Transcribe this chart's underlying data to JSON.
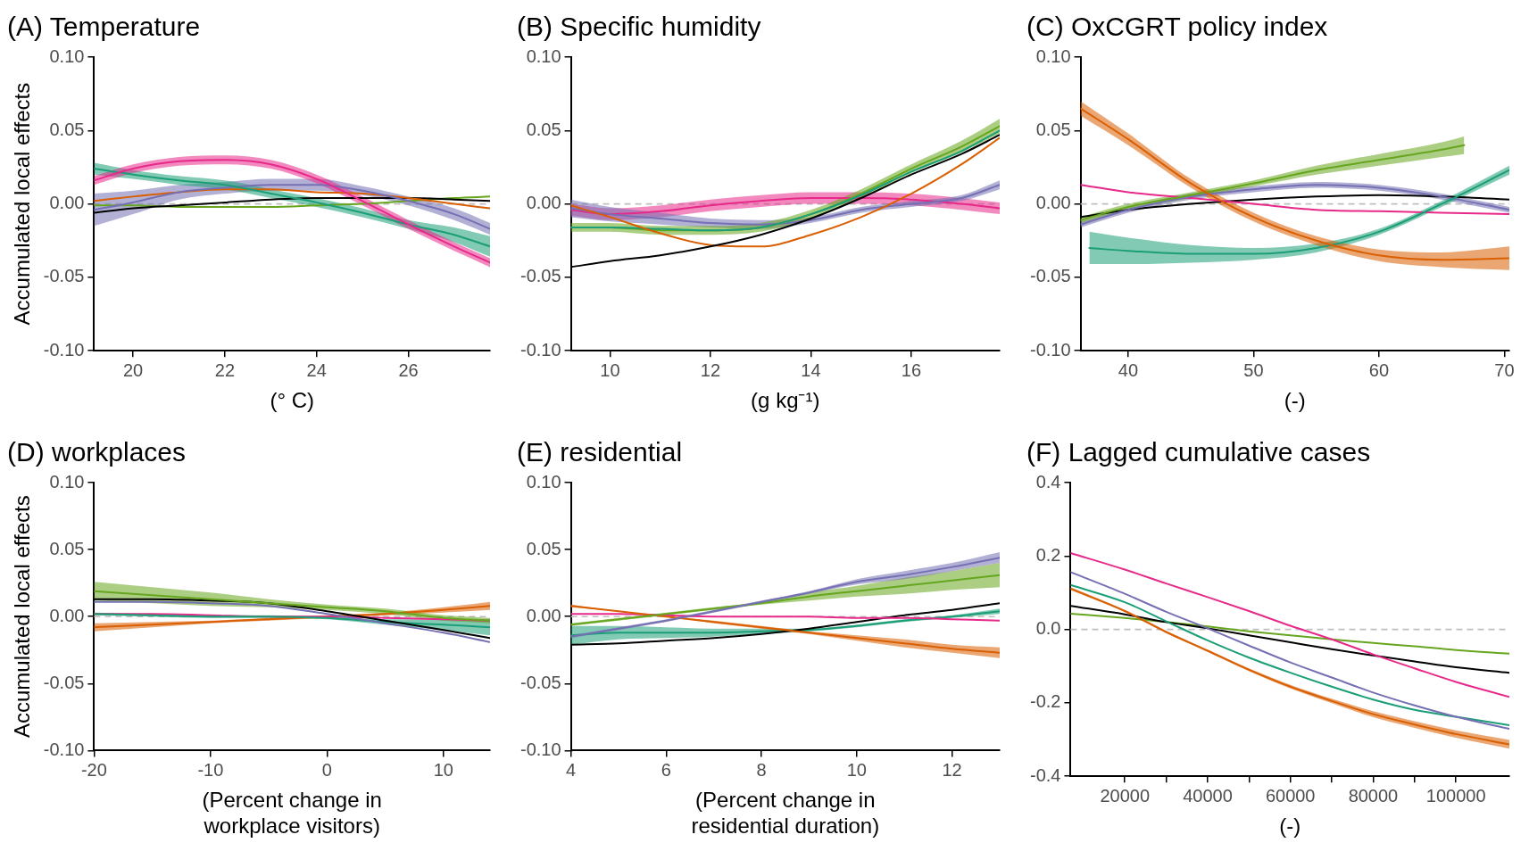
{
  "chart_data": [
    {
      "type": "line",
      "title": "(A) Temperature",
      "xlabel": "(° C)",
      "ylabel": "Accumulated local effects",
      "x": [
        19.15,
        20,
        21,
        22,
        23,
        24,
        25,
        26,
        27,
        27.78
      ],
      "xlim": [
        19.15,
        27.78
      ],
      "xticks": [
        20,
        22,
        24,
        26
      ],
      "ylim": [
        -0.1,
        0.1
      ],
      "yticks": [
        {
          "value": -0.1,
          "label": "-0.10"
        },
        {
          "value": -0.05,
          "label": "-0.05"
        },
        {
          "value": 0,
          "label": "0.00"
        },
        {
          "value": 0.05,
          "label": "0.05"
        },
        {
          "value": 0.1,
          "label": "0.10"
        }
      ],
      "ref_lines": [
        {
          "axis": "y",
          "value": 0,
          "color": "#bebebe",
          "line_style": "dashed"
        }
      ],
      "series": [
        {
          "color": "#e7298a",
          "values": [
            0.016,
            0.024,
            0.029,
            0.03,
            0.027,
            0.017,
            0.002,
            -0.014,
            -0.029,
            -0.04
          ],
          "lower": [
            0.013,
            0.021,
            0.026,
            0.027,
            0.024,
            0.014,
            -0.001,
            -0.017,
            -0.032,
            -0.043
          ],
          "upper": [
            0.019,
            0.027,
            0.032,
            0.033,
            0.03,
            0.02,
            0.005,
            -0.011,
            -0.026,
            -0.037
          ]
        },
        {
          "color": "#1b9e77",
          "values": [
            0.024,
            0.02,
            0.016,
            0.013,
            0.007,
            0.001,
            -0.006,
            -0.014,
            -0.021,
            -0.029
          ],
          "lower": [
            0.02,
            0.017,
            0.013,
            0.01,
            0.004,
            -0.002,
            -0.009,
            -0.017,
            -0.026,
            -0.036
          ],
          "upper": [
            0.028,
            0.023,
            0.019,
            0.016,
            0.01,
            0.004,
            -0.003,
            -0.011,
            -0.016,
            -0.022
          ]
        },
        {
          "color": "#7570b3",
          "values": [
            -0.004,
            0.001,
            0.008,
            0.011,
            0.013,
            0.013,
            0.009,
            0.002,
            -0.007,
            -0.017
          ],
          "lower": [
            -0.015,
            -0.007,
            0.003,
            0.007,
            0.009,
            0.009,
            0.006,
            -0.001,
            -0.011,
            -0.021
          ],
          "upper": [
            0.007,
            0.009,
            0.013,
            0.015,
            0.017,
            0.017,
            0.012,
            0.005,
            -0.003,
            -0.013
          ]
        },
        {
          "color": "#d95f02",
          "values": [
            0.002,
            0.005,
            0.008,
            0.01,
            0.01,
            0.008,
            0.007,
            0.004,
            0.0,
            -0.003
          ]
        },
        {
          "color": "#000000",
          "values": [
            -0.006,
            -0.003,
            -0.001,
            0.001,
            0.003,
            0.004,
            0.004,
            0.004,
            0.003,
            0.002
          ]
        },
        {
          "color": "#66a61e",
          "values": [
            -0.001,
            -0.001,
            -0.002,
            -0.002,
            -0.002,
            -0.001,
            0.0,
            0.002,
            0.004,
            0.005
          ]
        }
      ]
    },
    {
      "type": "line",
      "title": "(B) Specific humidity",
      "xlabel": "(g kg⁻¹)",
      "x": [
        9.22,
        10,
        11,
        12,
        13,
        14,
        15,
        16,
        17,
        17.76
      ],
      "xlim": [
        9.22,
        17.76
      ],
      "xticks": [
        10,
        12,
        14,
        16
      ],
      "ylim": [
        -0.1,
        0.1
      ],
      "yticks": [
        {
          "value": -0.1,
          "label": "-0.10"
        },
        {
          "value": -0.05,
          "label": "-0.05"
        },
        {
          "value": 0,
          "label": "0.00"
        },
        {
          "value": 0.05,
          "label": "0.05"
        },
        {
          "value": 0.1,
          "label": "0.10"
        }
      ],
      "ref_lines": [
        {
          "axis": "y",
          "value": 0,
          "color": "#bebebe",
          "line_style": "dashed"
        }
      ],
      "series": [
        {
          "color": "#000000",
          "values": [
            -0.043,
            -0.039,
            -0.035,
            -0.029,
            -0.021,
            -0.01,
            0.004,
            0.02,
            0.034,
            0.047
          ]
        },
        {
          "color": "#d95f02",
          "values": [
            -0.001,
            -0.009,
            -0.02,
            -0.028,
            -0.029,
            -0.021,
            -0.009,
            0.007,
            0.027,
            0.045
          ]
        },
        {
          "color": "#1b9e77",
          "values": [
            -0.016,
            -0.016,
            -0.017,
            -0.018,
            -0.016,
            -0.007,
            0.006,
            0.022,
            0.036,
            0.05
          ]
        },
        {
          "color": "#66a61e",
          "values": [
            -0.016,
            -0.016,
            -0.018,
            -0.018,
            -0.016,
            -0.007,
            0.007,
            0.024,
            0.039,
            0.053
          ],
          "lower": [
            -0.019,
            -0.019,
            -0.021,
            -0.021,
            -0.019,
            -0.01,
            0.004,
            0.021,
            0.035,
            0.048
          ],
          "upper": [
            -0.013,
            -0.013,
            -0.015,
            -0.015,
            -0.013,
            -0.004,
            0.01,
            0.027,
            0.043,
            0.058
          ]
        },
        {
          "color": "#7570b3",
          "values": [
            -0.003,
            -0.007,
            -0.01,
            -0.013,
            -0.014,
            -0.011,
            -0.004,
            0.0,
            0.004,
            0.013
          ],
          "lower": [
            -0.009,
            -0.012,
            -0.014,
            -0.016,
            -0.017,
            -0.013,
            -0.006,
            -0.002,
            0.002,
            0.01
          ],
          "upper": [
            0.003,
            -0.002,
            -0.006,
            -0.01,
            -0.011,
            -0.009,
            -0.002,
            0.002,
            0.006,
            0.016
          ]
        },
        {
          "color": "#e7298a",
          "values": [
            -0.004,
            -0.007,
            -0.005,
            -0.001,
            0.002,
            0.004,
            0.004,
            0.003,
            0.0,
            -0.003
          ],
          "lower": [
            -0.008,
            -0.011,
            -0.009,
            -0.005,
            -0.002,
            0.0,
            0.0,
            -0.001,
            -0.004,
            -0.007
          ],
          "upper": [
            0.0,
            -0.003,
            -0.001,
            0.003,
            0.006,
            0.008,
            0.008,
            0.007,
            0.004,
            0.001
          ]
        }
      ]
    },
    {
      "type": "line",
      "title": "(C) OxCGRT policy index",
      "xlabel": "(-)",
      "x": [
        36.2,
        40,
        45,
        50,
        55,
        60,
        65,
        70.4
      ],
      "xlim": [
        36.2,
        70.4
      ],
      "xticks": [
        40,
        50,
        60,
        70
      ],
      "ylim": [
        -0.1,
        0.1
      ],
      "yticks": [
        {
          "value": -0.1,
          "label": "-0.10"
        },
        {
          "value": -0.05,
          "label": "-0.05"
        },
        {
          "value": 0,
          "label": "0.00"
        },
        {
          "value": 0.05,
          "label": "0.05"
        },
        {
          "value": 0.1,
          "label": "0.10"
        }
      ],
      "ref_lines": [
        {
          "axis": "y",
          "value": 0,
          "color": "#bebebe",
          "line_style": "dashed"
        }
      ],
      "series": [
        {
          "color": "#d95f02",
          "values": [
            0.065,
            0.044,
            0.014,
            -0.009,
            -0.025,
            -0.035,
            -0.038,
            -0.037
          ],
          "lower": [
            0.06,
            0.04,
            0.011,
            -0.012,
            -0.028,
            -0.039,
            -0.043,
            -0.045
          ],
          "upper": [
            0.07,
            0.048,
            0.017,
            -0.006,
            -0.022,
            -0.031,
            -0.033,
            -0.029
          ]
        },
        {
          "color": "#66a61e",
          "x": [
            36.2,
            40,
            45,
            50,
            55,
            60,
            65,
            66.8
          ],
          "values": [
            -0.011,
            -0.002,
            0.006,
            0.014,
            0.023,
            0.03,
            0.037,
            0.04
          ],
          "lower": [
            -0.013,
            -0.004,
            0.004,
            0.012,
            0.02,
            0.026,
            0.032,
            0.034
          ],
          "upper": [
            -0.009,
            0.0,
            0.008,
            0.016,
            0.026,
            0.034,
            0.042,
            0.046
          ]
        },
        {
          "color": "#1b9e77",
          "x": [
            36.9,
            40,
            45,
            50,
            55,
            60,
            65,
            70.4
          ],
          "values": [
            -0.03,
            -0.032,
            -0.034,
            -0.034,
            -0.03,
            -0.019,
            0.0,
            0.023
          ],
          "lower": [
            -0.041,
            -0.041,
            -0.04,
            -0.038,
            -0.033,
            -0.021,
            -0.002,
            0.02
          ],
          "upper": [
            -0.019,
            -0.023,
            -0.028,
            -0.03,
            -0.027,
            -0.017,
            0.002,
            0.026
          ]
        },
        {
          "color": "#7570b3",
          "values": [
            -0.014,
            -0.004,
            0.005,
            0.01,
            0.013,
            0.011,
            0.005,
            -0.004
          ],
          "lower": [
            -0.016,
            -0.006,
            0.003,
            0.008,
            0.011,
            0.009,
            0.003,
            -0.006
          ],
          "upper": [
            -0.012,
            -0.002,
            0.007,
            0.012,
            0.015,
            0.013,
            0.007,
            -0.002
          ]
        },
        {
          "color": "#e7298a",
          "values": [
            0.013,
            0.008,
            0.004,
            0.0,
            -0.004,
            -0.005,
            -0.006,
            -0.007
          ]
        },
        {
          "color": "#000000",
          "values": [
            -0.009,
            -0.004,
            0.0,
            0.003,
            0.005,
            0.006,
            0.005,
            0.003
          ]
        }
      ]
    },
    {
      "type": "line",
      "title": "(D) workplaces",
      "xlabel": "(Percent change in\nworkplace visitors)",
      "ylabel": "Accumulated local effects",
      "x": [
        -20,
        -15,
        -10,
        -5,
        0,
        5,
        10,
        14
      ],
      "xlim": [
        -20,
        14
      ],
      "xticks": [
        -20,
        -10,
        0,
        10
      ],
      "ylim": [
        -0.1,
        0.1
      ],
      "yticks": [
        {
          "value": -0.1,
          "label": "-0.10"
        },
        {
          "value": -0.05,
          "label": "-0.05"
        },
        {
          "value": 0,
          "label": "0.00"
        },
        {
          "value": 0.05,
          "label": "0.05"
        },
        {
          "value": 0.1,
          "label": "0.10"
        }
      ],
      "ref_lines": [
        {
          "axis": "y",
          "value": 0,
          "color": "#bebebe",
          "line_style": "dashed"
        }
      ],
      "series": [
        {
          "color": "#66a61e",
          "values": [
            0.019,
            0.016,
            0.013,
            0.01,
            0.007,
            0.004,
            -0.001,
            -0.003
          ],
          "lower": [
            0.012,
            0.01,
            0.008,
            0.007,
            0.005,
            0.002,
            -0.003,
            -0.005
          ],
          "upper": [
            0.026,
            0.022,
            0.018,
            0.013,
            0.009,
            0.006,
            0.001,
            -0.001
          ]
        },
        {
          "color": "#000000",
          "values": [
            0.013,
            0.013,
            0.012,
            0.01,
            0.004,
            -0.003,
            -0.01,
            -0.016
          ]
        },
        {
          "color": "#7570b3",
          "values": [
            0.011,
            0.011,
            0.01,
            0.008,
            0.002,
            -0.005,
            -0.012,
            -0.019
          ]
        },
        {
          "color": "#1b9e77",
          "values": [
            0.002,
            0.001,
            0.0,
            0.0,
            -0.001,
            -0.004,
            -0.006,
            -0.008
          ],
          "lower": [
            0.001,
            0.0,
            -0.001,
            -0.001,
            -0.002,
            -0.006,
            -0.01,
            -0.014
          ],
          "upper": [
            0.003,
            0.002,
            0.001,
            0.001,
            0.0,
            -0.002,
            -0.002,
            -0.002
          ]
        },
        {
          "color": "#e7298a",
          "values": [
            0.002,
            0.002,
            0.001,
            0.0,
            0.0,
            -0.001,
            -0.002,
            -0.003
          ]
        },
        {
          "color": "#d95f02",
          "values": [
            -0.008,
            -0.006,
            -0.004,
            -0.002,
            0.0,
            0.002,
            0.005,
            0.008
          ],
          "lower": [
            -0.011,
            -0.008,
            -0.005,
            -0.003,
            -0.001,
            0.001,
            0.003,
            0.005
          ],
          "upper": [
            -0.005,
            -0.004,
            -0.003,
            -0.001,
            0.001,
            0.003,
            0.007,
            0.011
          ]
        }
      ]
    },
    {
      "type": "line",
      "title": "(E) residential",
      "xlabel": "(Percent change in\nresidential duration)",
      "x": [
        4,
        5,
        6,
        7,
        8,
        9,
        10,
        11,
        12,
        13
      ],
      "xlim": [
        4,
        13
      ],
      "xticks": [
        4,
        6,
        8,
        10,
        12
      ],
      "ylim": [
        -0.1,
        0.1
      ],
      "yticks": [
        {
          "value": -0.1,
          "label": "-0.10"
        },
        {
          "value": -0.05,
          "label": "-0.05"
        },
        {
          "value": 0,
          "label": "0.00"
        },
        {
          "value": 0.05,
          "label": "0.05"
        },
        {
          "value": 0.1,
          "label": "0.10"
        }
      ],
      "ref_lines": [
        {
          "axis": "y",
          "value": 0,
          "color": "#bebebe",
          "line_style": "dashed"
        }
      ],
      "series": [
        {
          "color": "#7570b3",
          "values": [
            -0.015,
            -0.009,
            -0.003,
            0.004,
            0.011,
            0.018,
            0.026,
            0.031,
            0.037,
            0.044
          ],
          "lower": [
            -0.016,
            -0.01,
            -0.004,
            0.003,
            0.01,
            0.017,
            0.024,
            0.028,
            0.034,
            0.04
          ],
          "upper": [
            -0.014,
            -0.008,
            -0.002,
            0.005,
            0.012,
            0.019,
            0.028,
            0.034,
            0.04,
            0.048
          ]
        },
        {
          "color": "#66a61e",
          "values": [
            -0.006,
            -0.002,
            0.002,
            0.006,
            0.01,
            0.015,
            0.019,
            0.023,
            0.027,
            0.031
          ],
          "lower": [
            -0.007,
            -0.003,
            0.001,
            0.005,
            0.009,
            0.012,
            0.015,
            0.017,
            0.02,
            0.022
          ],
          "upper": [
            -0.005,
            -0.001,
            0.003,
            0.007,
            0.011,
            0.018,
            0.023,
            0.029,
            0.034,
            0.04
          ]
        },
        {
          "color": "#d95f02",
          "values": [
            0.008,
            0.004,
            0.0,
            -0.004,
            -0.008,
            -0.012,
            -0.016,
            -0.02,
            -0.024,
            -0.027
          ],
          "lower": [
            0.007,
            0.004,
            0.0,
            -0.005,
            -0.009,
            -0.013,
            -0.018,
            -0.023,
            -0.027,
            -0.031
          ],
          "upper": [
            0.009,
            0.004,
            0.0,
            -0.003,
            -0.007,
            -0.011,
            -0.014,
            -0.017,
            -0.021,
            -0.023
          ]
        },
        {
          "color": "#e7298a",
          "values": [
            0.002,
            0.002,
            0.001,
            0.0,
            0.0,
            0.0,
            -0.001,
            -0.001,
            -0.002,
            -0.003
          ]
        },
        {
          "color": "#000000",
          "values": [
            -0.021,
            -0.02,
            -0.018,
            -0.016,
            -0.013,
            -0.009,
            -0.004,
            0.001,
            0.005,
            0.01
          ]
        },
        {
          "color": "#1b9e77",
          "values": [
            -0.014,
            -0.012,
            -0.012,
            -0.012,
            -0.011,
            -0.01,
            -0.007,
            -0.003,
            0.0,
            0.004
          ],
          "lower": [
            -0.021,
            -0.017,
            -0.016,
            -0.015,
            -0.013,
            -0.011,
            -0.008,
            -0.004,
            -0.001,
            0.002
          ],
          "upper": [
            -0.007,
            -0.007,
            -0.008,
            -0.009,
            -0.009,
            -0.009,
            -0.006,
            -0.002,
            0.001,
            0.006
          ]
        }
      ]
    },
    {
      "type": "line",
      "title": "(F) Lagged cumulative cases",
      "xlabel": "(-)",
      "x": [
        6900,
        20000,
        30000,
        40000,
        50000,
        60000,
        70000,
        80000,
        90000,
        100000,
        112900
      ],
      "xlim": [
        6900,
        112900
      ],
      "xticks": [
        20000,
        {
          "value": 30000,
          "label": null
        },
        40000,
        {
          "value": 50000,
          "label": null
        },
        60000,
        {
          "value": 70000,
          "label": null
        },
        80000,
        {
          "value": 90000,
          "label": null
        },
        100000
      ],
      "ylim": [
        -0.4,
        0.4
      ],
      "yticks": [
        {
          "value": -0.4,
          "label": "-0.4"
        },
        {
          "value": -0.2,
          "label": "-0.2"
        },
        {
          "value": 0,
          "label": "0.0"
        },
        {
          "value": 0.2,
          "label": "0.2"
        },
        {
          "value": 0.4,
          "label": "0.4"
        }
      ],
      "ref_lines": [
        {
          "axis": "y",
          "value": 0,
          "color": "#bebebe",
          "line_style": "dashed"
        }
      ],
      "series": [
        {
          "color": "#e7298a",
          "values": [
            0.208,
            0.163,
            0.125,
            0.088,
            0.05,
            0.01,
            -0.027,
            -0.068,
            -0.106,
            -0.143,
            -0.184
          ]
        },
        {
          "color": "#7570b3",
          "values": [
            0.156,
            0.097,
            0.048,
            0.003,
            -0.044,
            -0.09,
            -0.131,
            -0.172,
            -0.207,
            -0.238,
            -0.271
          ]
        },
        {
          "color": "#1b9e77",
          "values": [
            0.121,
            0.074,
            0.022,
            -0.03,
            -0.077,
            -0.118,
            -0.156,
            -0.191,
            -0.219,
            -0.238,
            -0.261
          ]
        },
        {
          "color": "#d95f02",
          "values": [
            0.111,
            0.05,
            -0.007,
            -0.058,
            -0.11,
            -0.156,
            -0.195,
            -0.231,
            -0.259,
            -0.285,
            -0.313
          ],
          "lower": [
            0.107,
            0.047,
            -0.01,
            -0.061,
            -0.114,
            -0.161,
            -0.201,
            -0.239,
            -0.268,
            -0.295,
            -0.325
          ],
          "upper": [
            0.115,
            0.053,
            -0.004,
            -0.055,
            -0.106,
            -0.151,
            -0.189,
            -0.223,
            -0.25,
            -0.275,
            -0.301
          ]
        },
        {
          "color": "#000000",
          "values": [
            0.064,
            0.041,
            0.02,
            0.003,
            -0.016,
            -0.035,
            -0.054,
            -0.071,
            -0.087,
            -0.103,
            -0.118
          ]
        },
        {
          "color": "#66a61e",
          "values": [
            0.043,
            0.031,
            0.02,
            0.008,
            -0.005,
            -0.016,
            -0.027,
            -0.037,
            -0.046,
            -0.056,
            -0.066
          ]
        }
      ]
    }
  ]
}
